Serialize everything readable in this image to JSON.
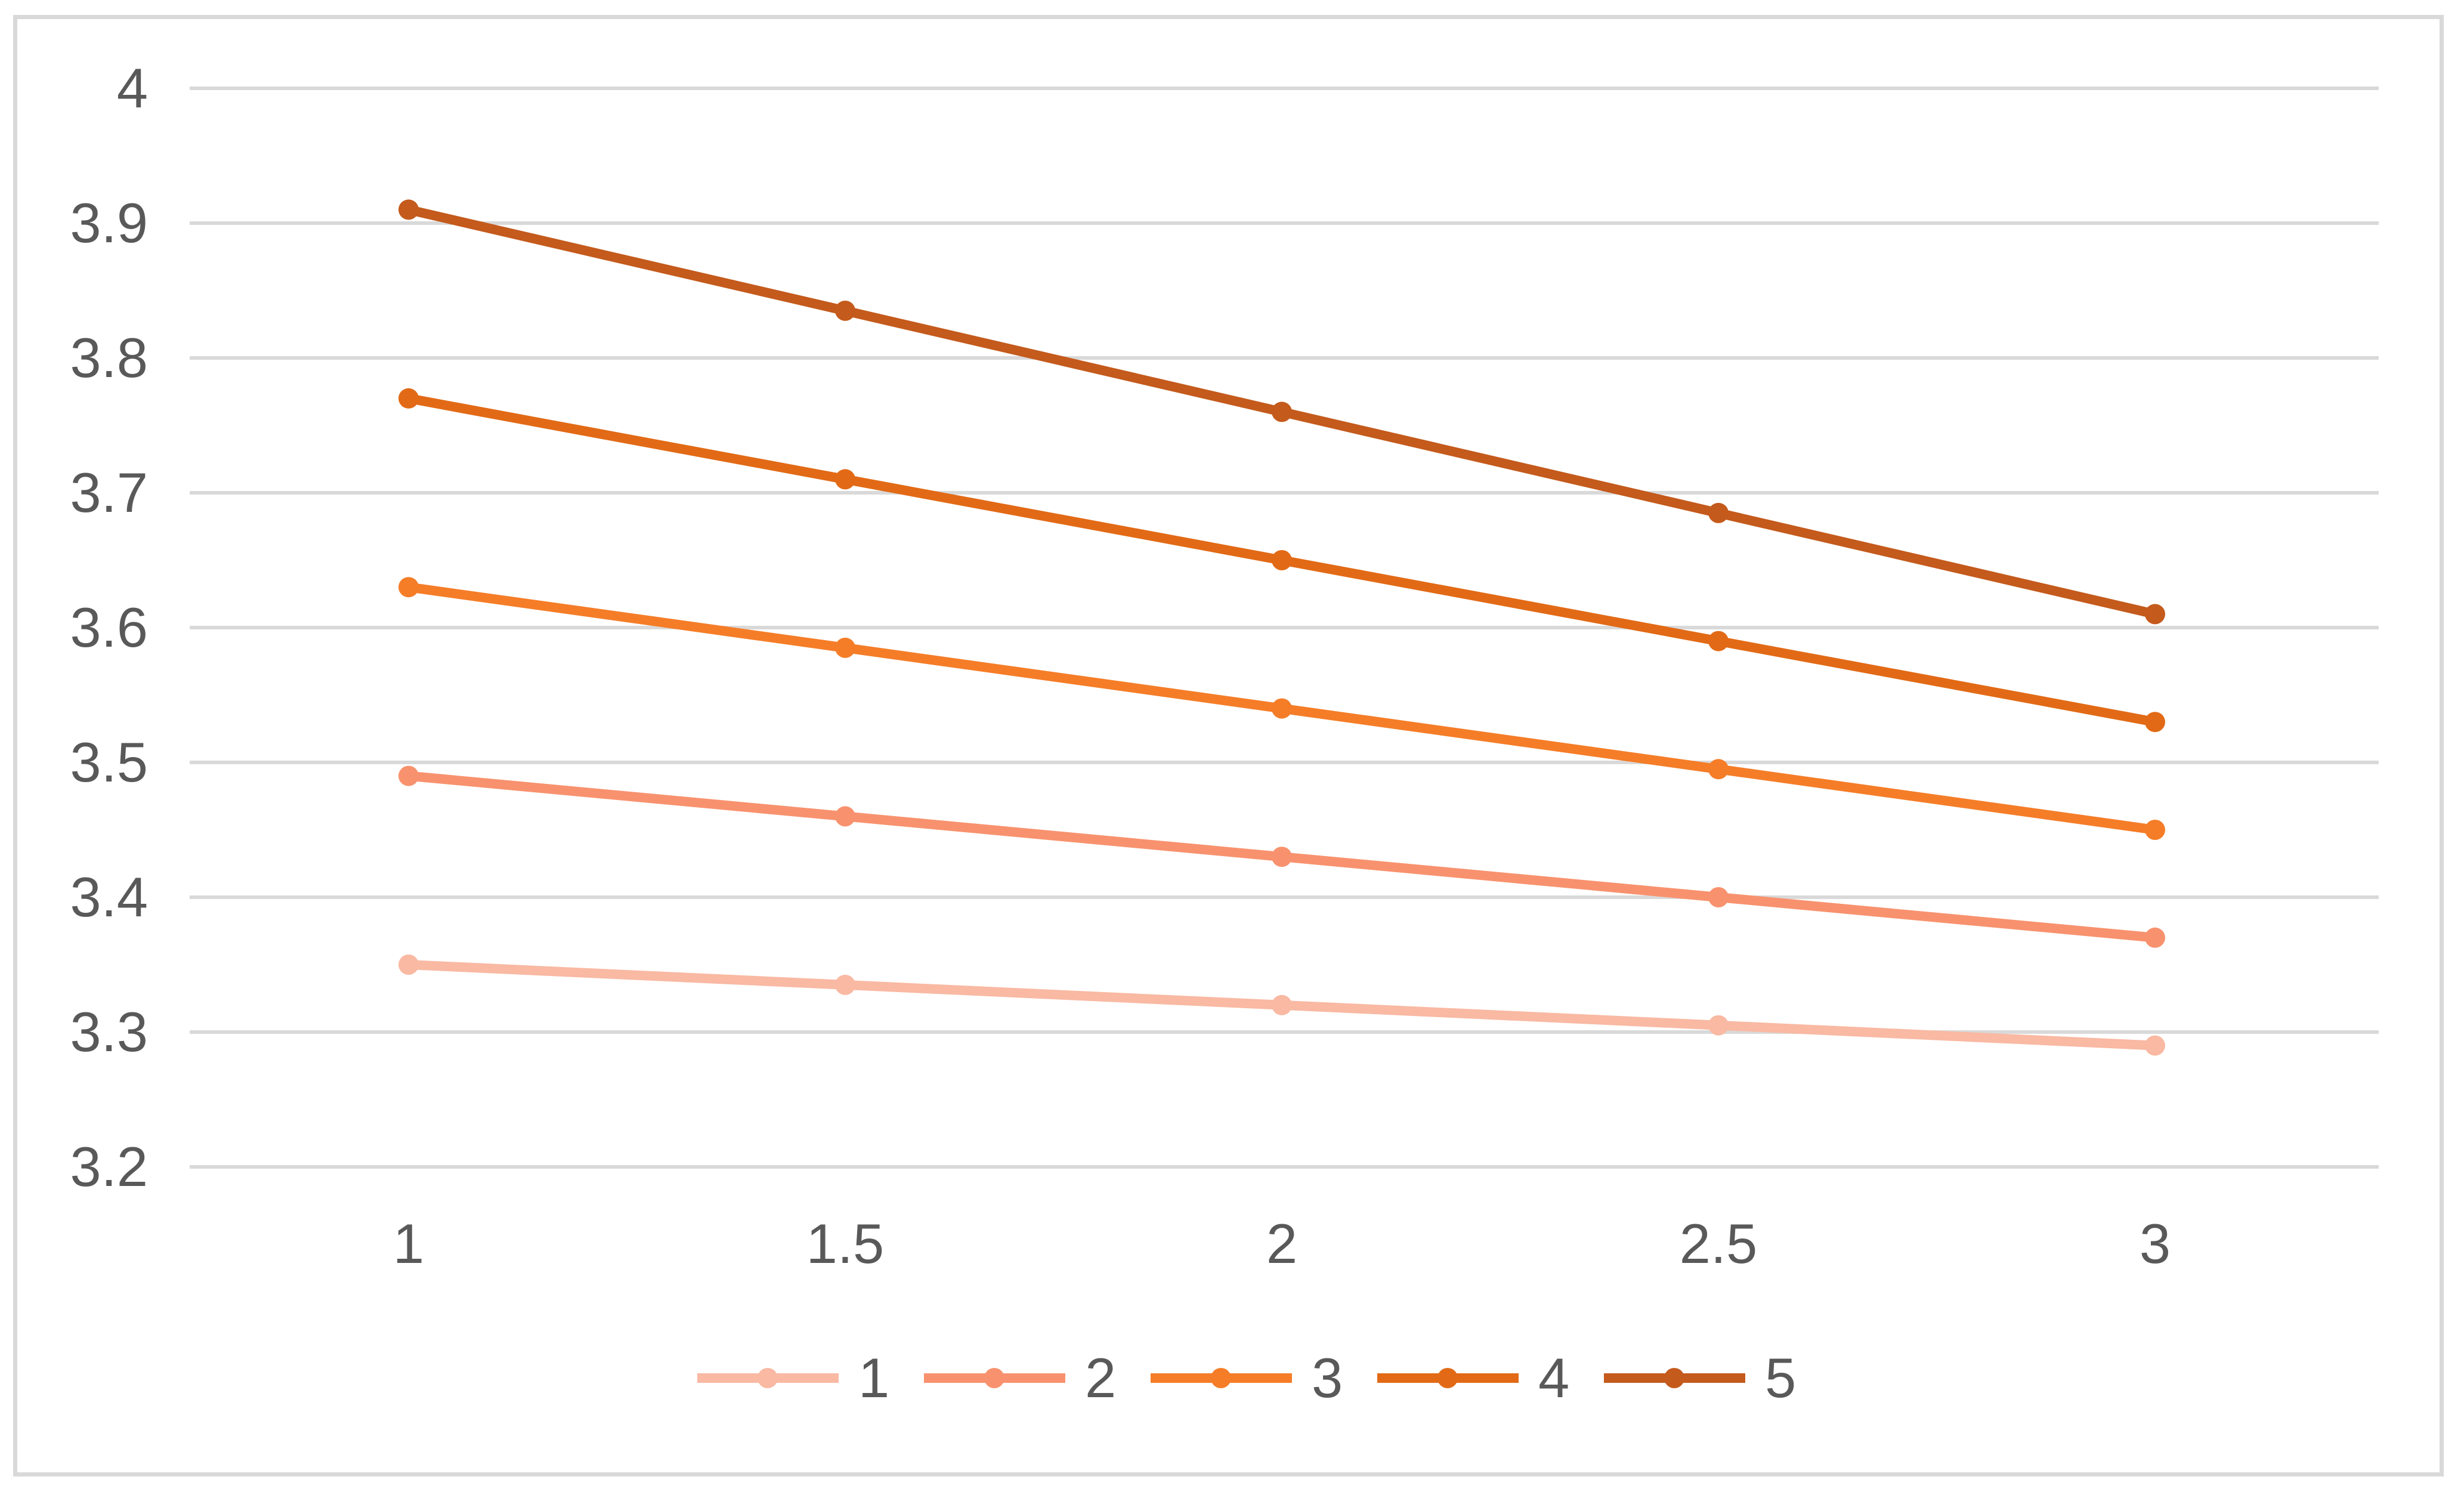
{
  "frame": {
    "border_color": "#D9D9D9",
    "background_color": "#FFFFFF"
  },
  "chart_data": {
    "type": "line",
    "title": "",
    "xlabel": "",
    "ylabel": "",
    "x": [
      1,
      1.5,
      2,
      2.5,
      3
    ],
    "x_tick_labels": [
      "1",
      "1.5",
      "2",
      "2.5",
      "3"
    ],
    "y_ticks": [
      4,
      3.9,
      3.8,
      3.7,
      3.6,
      3.5,
      3.4,
      3.3,
      3.2
    ],
    "y_tick_labels": [
      "4",
      "3.9",
      "3.8",
      "3.7",
      "3.6",
      "3.5",
      "3.4",
      "3.3",
      "3.2"
    ],
    "ylim": [
      3.2,
      4.0
    ],
    "grid": true,
    "gridline_color": "#D9D9D9",
    "tick_label_color": "#595959",
    "line_width": 16,
    "marker": "circle",
    "marker_radius": 17,
    "legend_position": "bottom",
    "series": [
      {
        "name": "1",
        "color": "#F9B9A3",
        "values": [
          3.35,
          3.335,
          3.32,
          3.305,
          3.29
        ]
      },
      {
        "name": "2",
        "color": "#F8926E",
        "values": [
          3.49,
          3.46,
          3.43,
          3.4,
          3.37
        ]
      },
      {
        "name": "3",
        "color": "#F57D28",
        "values": [
          3.63,
          3.585,
          3.54,
          3.495,
          3.45
        ]
      },
      {
        "name": "4",
        "color": "#E26A16",
        "values": [
          3.77,
          3.71,
          3.65,
          3.59,
          3.53
        ]
      },
      {
        "name": "5",
        "color": "#C45A1C",
        "values": [
          3.91,
          3.835,
          3.76,
          3.685,
          3.61
        ]
      }
    ]
  }
}
